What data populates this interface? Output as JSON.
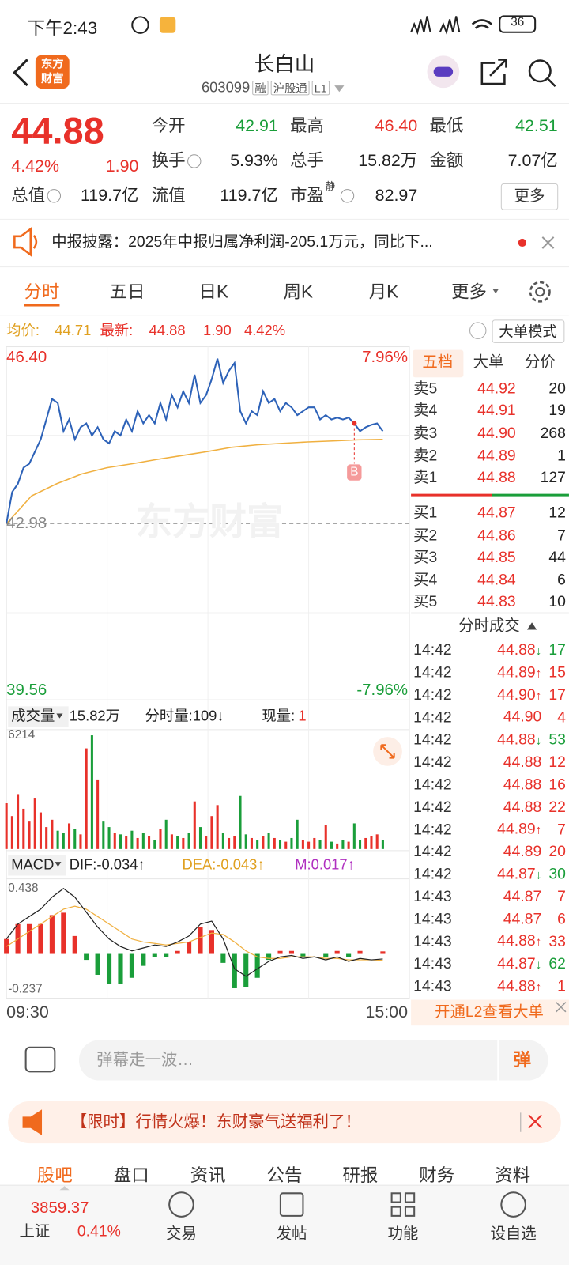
{
  "status_bar": {
    "time": "下午2:43",
    "battery": 36
  },
  "header": {
    "logo": [
      "东方",
      "财富"
    ],
    "title": "长白山",
    "code": "603099",
    "tags": [
      "融",
      "沪股通",
      "L1"
    ]
  },
  "quote": {
    "price": "44.88",
    "change_pct": "4.42%",
    "change": "1.90",
    "more": "更多",
    "stats": [
      {
        "label": "今开",
        "value": "42.91",
        "color": "#1a9e3a"
      },
      {
        "label": "最高",
        "value": "46.40",
        "color": "#e8312a"
      },
      {
        "label": "最低",
        "value": "42.51",
        "color": "#1a9e3a"
      },
      {
        "label": "换手",
        "value": "5.93%",
        "color": "#222"
      },
      {
        "label": "总手",
        "value": "15.82万",
        "color": "#222"
      },
      {
        "label": "金额",
        "value": "7.07亿",
        "color": "#222"
      },
      {
        "label": "总值",
        "value": "119.7亿",
        "color": "#222"
      },
      {
        "label": "流值",
        "value": "119.7亿",
        "color": "#222"
      },
      {
        "label": "市盈",
        "sup": "静",
        "value": "82.97",
        "color": "#222"
      }
    ]
  },
  "notice": "中报披露：2025年中报归属净利润-205.1万元，同比下...",
  "tabs": [
    "分时",
    "五日",
    "日K",
    "周K",
    "月K",
    "更多"
  ],
  "summary": {
    "avg_label": "均价:",
    "avg": "44.71",
    "latest_label": "最新:",
    "latest": "44.88",
    "change": "1.90",
    "change_pct": "4.42%",
    "mode": "大单模式"
  },
  "price_chart": {
    "type": "line",
    "watermark": "东方财富",
    "marker": "B",
    "ylim": [
      39.56,
      46.4
    ],
    "yticks": [
      {
        "value": 46.4,
        "label": "46.40"
      },
      {
        "value": 42.98,
        "label": "42.98"
      },
      {
        "value": 39.56,
        "label": "39.56"
      }
    ],
    "y2lim": [
      -7.96,
      7.96
    ],
    "y2ticks": [
      {
        "value": 7.96,
        "label": "7.96%"
      },
      {
        "value": -7.96,
        "label": "-7.96%"
      }
    ],
    "x_labels": [
      "09:30",
      "15:00"
    ],
    "price": {
      "color": "#2d62b8",
      "values": [
        42.98,
        43.63,
        43.8,
        44.13,
        44.21,
        44.46,
        44.71,
        45.12,
        45.54,
        45.46,
        44.88,
        45.12,
        44.71,
        44.96,
        45.04,
        44.79,
        44.96,
        44.71,
        44.63,
        44.88,
        44.79,
        45.12,
        44.88,
        45.29,
        45.04,
        45.21,
        45.04,
        45.46,
        45.12,
        45.62,
        45.37,
        45.7,
        45.46,
        46.04,
        45.46,
        45.62,
        45.95,
        46.37,
        45.87,
        46.12,
        46.28,
        45.29,
        45.04,
        45.29,
        45.21,
        45.7,
        45.46,
        45.54,
        45.29,
        45.46,
        45.37,
        45.21,
        45.29,
        45.37,
        45.37,
        45.12,
        45.21,
        45.12,
        45.16,
        45.12,
        45.16,
        45.04,
        44.88,
        44.96,
        45.01,
        45.04,
        44.88
      ]
    },
    "average": {
      "color": "#f0b040",
      "values": [
        42.98,
        43.55,
        43.8,
        44.0,
        44.13,
        44.21,
        44.3,
        44.38,
        44.46,
        44.55,
        44.6,
        44.63,
        44.66,
        44.68,
        44.7,
        44.71
      ]
    }
  },
  "volume_chart": {
    "type": "bar",
    "name": "成交量",
    "total": "15.82万",
    "tick_volume": "分时量:109↓",
    "current_label": "现量:",
    "current": "1",
    "ylim": [
      0,
      6214
    ],
    "yticks": [
      6214
    ],
    "values": [
      2500,
      1800,
      3000,
      2200,
      1500,
      2800,
      2000,
      1200,
      1600,
      1000,
      900,
      1400,
      1100,
      800,
      5500,
      6214,
      3800,
      1500,
      1200,
      900,
      800,
      700,
      1000,
      600,
      900,
      700,
      500,
      1100,
      1600,
      800,
      700,
      600,
      900,
      2600,
      1200,
      700,
      1800,
      2400,
      900,
      600,
      700,
      2900,
      800,
      600,
      500,
      700,
      900,
      600,
      500,
      400,
      600,
      1600,
      500,
      400,
      600,
      500,
      1300,
      400,
      300,
      500,
      400,
      1400,
      500,
      600,
      700,
      800,
      500
    ]
  },
  "macd_chart": {
    "type": "bar",
    "name": "MACD",
    "dif_label": "DIF:-0.034↑",
    "dea_label": "DEA:-0.043↑",
    "m_label": "M:0.017↑",
    "ylim": [
      -0.237,
      0.438
    ],
    "yticks": [
      0.438,
      -0.237
    ],
    "macd": [
      0.1,
      0.2,
      0.2,
      0.2,
      0.26,
      0.276,
      0.12,
      -0.04,
      -0.14,
      -0.2,
      -0.2,
      -0.16,
      -0.08,
      -0.02,
      -0.02,
      0.02,
      0.08,
      0.18,
      0.16,
      -0.06,
      -0.23,
      -0.22,
      -0.16,
      -0.04,
      0.02,
      0.02,
      -0.02,
      0,
      -0.02,
      0.02,
      -0.02,
      0.02,
      0,
      0.017
    ],
    "dif": {
      "color": "#222",
      "values": [
        0.1,
        0.2,
        0.25,
        0.3,
        0.38,
        0.438,
        0.38,
        0.28,
        0.18,
        0.1,
        0.05,
        0.02,
        0.04,
        0.06,
        0.05,
        0.08,
        0.12,
        0.2,
        0.22,
        0.1,
        -0.1,
        -0.15,
        -0.1,
        -0.05,
        -0.02,
        -0.01,
        -0.03,
        -0.02,
        -0.04,
        -0.02,
        -0.05,
        -0.03,
        -0.04,
        -0.034
      ]
    },
    "dea": {
      "color": "#f0b040",
      "values": [
        0.05,
        0.1,
        0.15,
        0.2,
        0.25,
        0.3,
        0.32,
        0.3,
        0.25,
        0.2,
        0.15,
        0.1,
        0.08,
        0.07,
        0.06,
        0.07,
        0.08,
        0.11,
        0.14,
        0.13,
        0.08,
        0.02,
        -0.02,
        -0.03,
        -0.03,
        -0.02,
        -0.02,
        -0.02,
        -0.03,
        -0.03,
        -0.04,
        -0.04,
        -0.04,
        -0.043
      ]
    }
  },
  "order_book": {
    "tabs": [
      "五档",
      "大单",
      "分价"
    ],
    "asks": [
      {
        "label": "卖5",
        "price": "44.92",
        "volume": 20
      },
      {
        "label": "卖4",
        "price": "44.91",
        "volume": 19
      },
      {
        "label": "卖3",
        "price": "44.90",
        "volume": 268
      },
      {
        "label": "卖2",
        "price": "44.89",
        "volume": 1
      },
      {
        "label": "卖1",
        "price": "44.88",
        "volume": 127
      }
    ],
    "bids": [
      {
        "label": "买1",
        "price": "44.87",
        "volume": 12
      },
      {
        "label": "买2",
        "price": "44.86",
        "volume": 7
      },
      {
        "label": "买3",
        "price": "44.85",
        "volume": 44
      },
      {
        "label": "买4",
        "price": "44.84",
        "volume": 6
      },
      {
        "label": "买5",
        "price": "44.83",
        "volume": 10
      }
    ]
  },
  "trades": {
    "title": "分时成交",
    "footer": "开通L2查看大单",
    "rows": [
      {
        "time": "14:42",
        "price": "44.88",
        "arrow": "↓",
        "volume": 17,
        "color": "#1a9e3a"
      },
      {
        "time": "14:42",
        "price": "44.89",
        "arrow": "↑",
        "volume": 15,
        "color": "#e8312a"
      },
      {
        "time": "14:42",
        "price": "44.90",
        "arrow": "↑",
        "volume": 17,
        "color": "#e8312a"
      },
      {
        "time": "14:42",
        "price": "44.90",
        "volume": 4,
        "color": "#e8312a"
      },
      {
        "time": "14:42",
        "price": "44.88",
        "arrow": "↓",
        "volume": 53,
        "color": "#1a9e3a"
      },
      {
        "time": "14:42",
        "price": "44.88",
        "volume": 12,
        "color": "#e8312a"
      },
      {
        "time": "14:42",
        "price": "44.88",
        "volume": 16,
        "color": "#e8312a"
      },
      {
        "time": "14:42",
        "price": "44.88",
        "volume": 22,
        "color": "#e8312a"
      },
      {
        "time": "14:42",
        "price": "44.89",
        "arrow": "↑",
        "volume": 7,
        "color": "#e8312a"
      },
      {
        "time": "14:42",
        "price": "44.89",
        "volume": 20,
        "color": "#e8312a"
      },
      {
        "time": "14:42",
        "price": "44.87",
        "arrow": "↓",
        "volume": 30,
        "color": "#1a9e3a"
      },
      {
        "time": "14:43",
        "price": "44.87",
        "volume": 7,
        "color": "#e8312a"
      },
      {
        "time": "14:43",
        "price": "44.87",
        "volume": 6,
        "color": "#e8312a"
      },
      {
        "time": "14:43",
        "price": "44.88",
        "arrow": "↑",
        "volume": 33,
        "color": "#e8312a"
      },
      {
        "time": "14:43",
        "price": "44.87",
        "arrow": "↓",
        "volume": 62,
        "color": "#1a9e3a"
      },
      {
        "time": "14:43",
        "price": "44.88",
        "arrow": "↑",
        "volume": 1,
        "color": "#e8312a"
      }
    ]
  },
  "comment": {
    "placeholder": "弹幕走一波…",
    "button": "弹"
  },
  "promo": "【限时】行情火爆！东财豪气送福利了！",
  "bottom_tabs": [
    "股吧",
    "盘口",
    "资讯",
    "公告",
    "研报",
    "财务",
    "资料"
  ],
  "nav": {
    "index_value": "3859.37",
    "index_name": "上证",
    "index_change": "0.41%",
    "items": [
      "交易",
      "发帖",
      "功能",
      "设自选"
    ]
  }
}
